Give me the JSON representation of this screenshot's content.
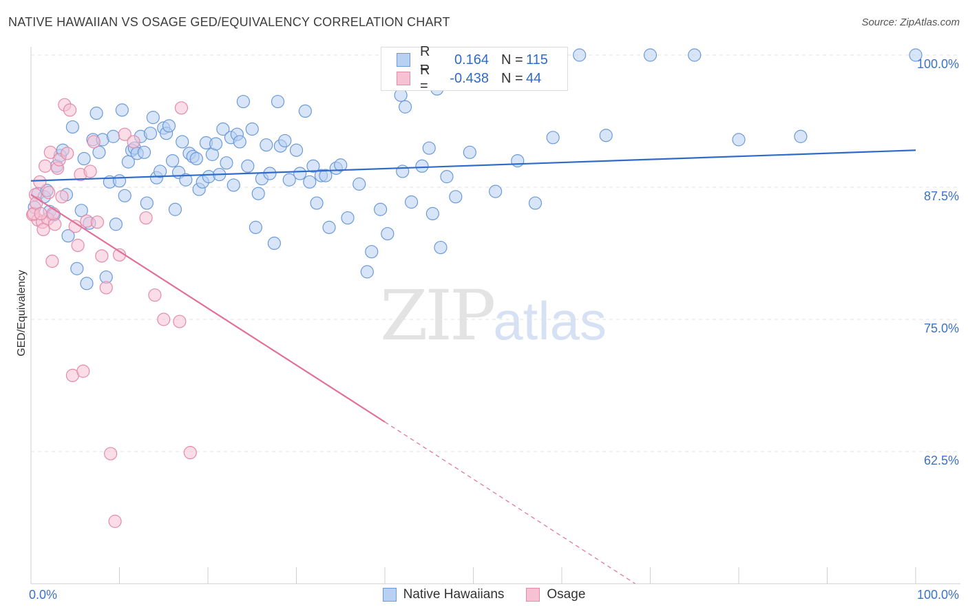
{
  "title": "NATIVE HAWAIIAN VS OSAGE GED/EQUIVALENCY CORRELATION CHART",
  "source": "Source: ZipAtlas.com",
  "watermark": {
    "zip": "ZIP",
    "atlas": "atlas"
  },
  "legend": {
    "rows": [
      {
        "r_label": "R =",
        "r_value": "0.164",
        "n_label": "N =",
        "n_value": "115"
      },
      {
        "r_label": "R =",
        "r_value": "-0.438",
        "n_label": "N =",
        "n_value": "44"
      }
    ]
  },
  "colors": {
    "blue_fill": "#b8d0f2",
    "blue_stroke": "#6a9ad9",
    "blue_line": "#2f6bc9",
    "pink_fill": "#f6c1d3",
    "pink_stroke": "#e58aa8",
    "pink_line": "#e0709a",
    "tick_label": "#3a72c8",
    "grid": "#e2e2e2"
  },
  "chart_data": {
    "type": "scatter",
    "xlabel": "",
    "ylabel": "GED/Equivalency",
    "xlim": [
      0,
      100
    ],
    "ylim": [
      50,
      100
    ],
    "x_tick_labels": [
      {
        "v": 0,
        "label": "0.0%"
      },
      {
        "v": 100,
        "label": "100.0%"
      }
    ],
    "y_tick_labels": [
      {
        "v": 100,
        "label": "100.0%"
      },
      {
        "v": 87.5,
        "label": "87.5%"
      },
      {
        "v": 75,
        "label": "75.0%"
      },
      {
        "v": 62.5,
        "label": "62.5%"
      }
    ],
    "series": [
      {
        "name": "Native Hawaiians",
        "color": "#6a9ad9",
        "trend": {
          "x0": 0,
          "y0": 88.1,
          "x1": 100,
          "y1": 91.0
        },
        "points": [
          [
            0.4,
            85.6
          ],
          [
            0.8,
            86.9
          ],
          [
            1.5,
            86.6
          ],
          [
            1.8,
            87.2
          ],
          [
            2.1,
            85.2
          ],
          [
            2.6,
            84.9
          ],
          [
            2.9,
            89.5
          ],
          [
            3.3,
            90.5
          ],
          [
            3.6,
            91.0
          ],
          [
            4.0,
            86.8
          ],
          [
            4.2,
            82.9
          ],
          [
            4.7,
            93.2
          ],
          [
            5.2,
            79.8
          ],
          [
            5.7,
            85.3
          ],
          [
            6.0,
            90.2
          ],
          [
            6.3,
            78.4
          ],
          [
            6.6,
            84.1
          ],
          [
            7.0,
            92.0
          ],
          [
            7.4,
            94.5
          ],
          [
            7.7,
            90.8
          ],
          [
            8.1,
            92.0
          ],
          [
            8.5,
            79.0
          ],
          [
            8.9,
            88.0
          ],
          [
            9.3,
            92.3
          ],
          [
            9.6,
            84.0
          ],
          [
            10.0,
            88.1
          ],
          [
            10.3,
            94.8
          ],
          [
            10.6,
            86.7
          ],
          [
            11.0,
            89.9
          ],
          [
            11.4,
            91.0
          ],
          [
            11.7,
            91.2
          ],
          [
            12.0,
            90.7
          ],
          [
            12.4,
            92.3
          ],
          [
            12.8,
            90.8
          ],
          [
            13.1,
            86.0
          ],
          [
            13.5,
            92.6
          ],
          [
            13.8,
            94.1
          ],
          [
            14.2,
            88.4
          ],
          [
            14.6,
            89.0
          ],
          [
            15.0,
            93.1
          ],
          [
            15.3,
            92.6
          ],
          [
            15.6,
            93.3
          ],
          [
            16.0,
            90.0
          ],
          [
            16.3,
            85.4
          ],
          [
            16.7,
            88.9
          ],
          [
            17.1,
            91.8
          ],
          [
            17.5,
            88.2
          ],
          [
            17.9,
            90.7
          ],
          [
            18.3,
            90.4
          ],
          [
            18.7,
            90.2
          ],
          [
            19.0,
            87.3
          ],
          [
            19.4,
            88.0
          ],
          [
            19.8,
            91.7
          ],
          [
            20.1,
            88.5
          ],
          [
            20.5,
            90.6
          ],
          [
            20.9,
            91.6
          ],
          [
            21.3,
            88.7
          ],
          [
            21.7,
            93.0
          ],
          [
            22.1,
            89.8
          ],
          [
            22.6,
            92.2
          ],
          [
            22.9,
            87.7
          ],
          [
            23.3,
            92.5
          ],
          [
            23.6,
            91.8
          ],
          [
            24.0,
            95.6
          ],
          [
            24.5,
            89.5
          ],
          [
            25.0,
            93.0
          ],
          [
            25.4,
            83.7
          ],
          [
            25.7,
            86.9
          ],
          [
            26.1,
            88.3
          ],
          [
            26.6,
            91.5
          ],
          [
            27.0,
            88.8
          ],
          [
            27.5,
            82.2
          ],
          [
            27.9,
            95.6
          ],
          [
            28.2,
            91.4
          ],
          [
            28.7,
            91.9
          ],
          [
            29.2,
            88.2
          ],
          [
            30.0,
            91.0
          ],
          [
            30.4,
            88.8
          ],
          [
            31.0,
            94.7
          ],
          [
            31.5,
            88.0
          ],
          [
            31.9,
            89.5
          ],
          [
            32.3,
            86.0
          ],
          [
            32.8,
            88.6
          ],
          [
            33.3,
            88.6
          ],
          [
            33.7,
            83.7
          ],
          [
            34.5,
            89.3
          ],
          [
            35.0,
            89.6
          ],
          [
            35.8,
            84.6
          ],
          [
            37.1,
            87.8
          ],
          [
            38.0,
            79.5
          ],
          [
            38.5,
            81.4
          ],
          [
            39.5,
            85.4
          ],
          [
            40.3,
            83.1
          ],
          [
            41.0,
            100.0
          ],
          [
            41.8,
            96.2
          ],
          [
            42.0,
            89.0
          ],
          [
            42.3,
            95.1
          ],
          [
            43.0,
            86.1
          ],
          [
            44.2,
            89.5
          ],
          [
            45.0,
            91.2
          ],
          [
            45.4,
            85.0
          ],
          [
            45.9,
            96.8
          ],
          [
            46.3,
            81.8
          ],
          [
            47.0,
            88.5
          ],
          [
            48.0,
            86.6
          ],
          [
            49.6,
            90.8
          ],
          [
            52.5,
            87.1
          ],
          [
            55.0,
            90.0
          ],
          [
            57.0,
            86.0
          ],
          [
            59.0,
            92.2
          ],
          [
            62.0,
            100.0
          ],
          [
            65.0,
            92.4
          ],
          [
            70.0,
            100.0
          ],
          [
            75.0,
            100.0
          ],
          [
            80.0,
            92.0
          ],
          [
            87.0,
            92.3
          ],
          [
            100.0,
            100.0
          ]
        ]
      },
      {
        "name": "Osage",
        "color": "#e58aa8",
        "trend": {
          "x0": 0,
          "y0": 86.8,
          "x1": 40,
          "y1": 65.3,
          "dash_x1": 68.3,
          "dash_y1": 50
        },
        "points": [
          [
            0.2,
            84.9
          ],
          [
            0.5,
            86.8
          ],
          [
            0.8,
            84.4
          ],
          [
            1.0,
            88.0
          ],
          [
            1.3,
            84.2
          ],
          [
            1.6,
            89.5
          ],
          [
            1.9,
            84.5
          ],
          [
            2.2,
            90.8
          ],
          [
            2.4,
            80.5
          ],
          [
            2.7,
            84.0
          ],
          [
            3.0,
            89.3
          ],
          [
            3.2,
            90.1
          ],
          [
            3.5,
            86.6
          ],
          [
            3.8,
            95.3
          ],
          [
            4.1,
            90.7
          ],
          [
            4.4,
            94.8
          ],
          [
            4.7,
            69.7
          ],
          [
            5.0,
            83.8
          ],
          [
            5.3,
            82.0
          ],
          [
            5.6,
            88.7
          ],
          [
            5.9,
            70.1
          ],
          [
            6.3,
            84.3
          ],
          [
            6.7,
            89.0
          ],
          [
            7.1,
            91.8
          ],
          [
            7.5,
            84.2
          ],
          [
            8.0,
            81.0
          ],
          [
            8.5,
            78.0
          ],
          [
            9.0,
            62.3
          ],
          [
            9.5,
            55.9
          ],
          [
            10.0,
            81.1
          ],
          [
            10.6,
            92.5
          ],
          [
            11.6,
            91.8
          ],
          [
            13.0,
            84.6
          ],
          [
            14.0,
            77.3
          ],
          [
            15.0,
            75.0
          ],
          [
            16.8,
            74.8
          ],
          [
            17.0,
            95.0
          ],
          [
            18.0,
            62.4
          ],
          [
            0.3,
            85.0
          ],
          [
            0.6,
            86.0
          ],
          [
            1.1,
            85.0
          ],
          [
            1.4,
            83.5
          ],
          [
            2.0,
            87.0
          ],
          [
            2.5,
            85.0
          ]
        ]
      }
    ]
  }
}
